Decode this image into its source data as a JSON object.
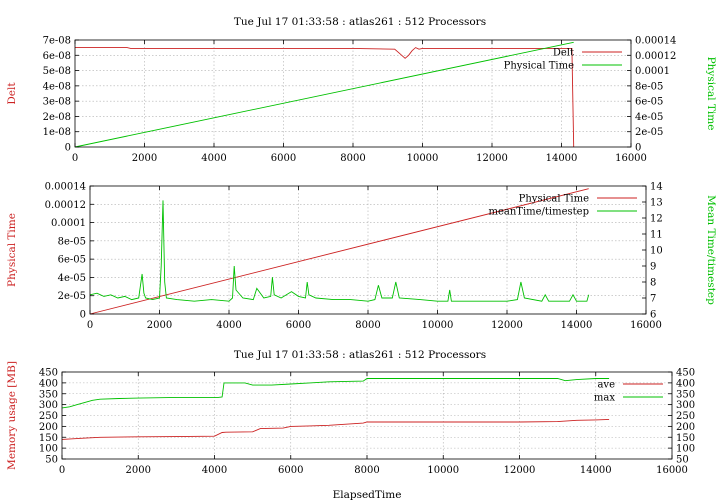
{
  "chart_data": [
    {
      "type": "line",
      "title": "Tue Jul 17 01:33:58 : atlas261 : 512 Processors",
      "xlabel": "",
      "ylabel": "Delt",
      "y2label": "Physical Time",
      "xlim": [
        0,
        16000
      ],
      "ylim": [
        0,
        7e-08
      ],
      "y2lim": [
        0,
        0.00014
      ],
      "xticks": [
        "0",
        "2000",
        "4000",
        "6000",
        "8000",
        "10000",
        "12000",
        "14000",
        "16000"
      ],
      "yticks": [
        "0",
        "1e-08",
        "2e-08",
        "3e-08",
        "4e-08",
        "5e-08",
        "6e-08",
        "7e-08"
      ],
      "y2ticks": [
        "0",
        "2e-05",
        "4e-05",
        "6e-05",
        "8e-05",
        "0.0001",
        "0.00012",
        "0.00014"
      ],
      "legend_position": "top-right",
      "grid": true,
      "series": [
        {
          "name": "Delt",
          "axis": "y",
          "color": "#cc2222",
          "x": [
            0,
            1500,
            1600,
            4000,
            8000,
            9200,
            9300,
            9400,
            9500,
            9600,
            9700,
            9800,
            9900,
            10000,
            12000,
            14000,
            14200,
            14300,
            14350
          ],
          "y": [
            6.5e-08,
            6.5e-08,
            6.45e-08,
            6.45e-08,
            6.45e-08,
            6.4e-08,
            6.2e-08,
            6e-08,
            5.8e-08,
            6e-08,
            6.3e-08,
            6.5e-08,
            6.4e-08,
            6.45e-08,
            6.45e-08,
            6.45e-08,
            6.45e-08,
            6.45e-08,
            0
          ]
        },
        {
          "name": "Physical Time",
          "axis": "y2",
          "color": "#00c000",
          "x": [
            0,
            14350
          ],
          "y": [
            0,
            0.000137
          ]
        }
      ]
    },
    {
      "type": "line",
      "title": "",
      "xlabel": "",
      "ylabel": "Physical Time",
      "y2label": "Mean Time/timestep",
      "xlim": [
        0,
        16000
      ],
      "ylim": [
        0,
        0.00014
      ],
      "y2lim": [
        6,
        14
      ],
      "xticks": [
        "0",
        "2000",
        "4000",
        "6000",
        "8000",
        "10000",
        "12000",
        "14000",
        "16000"
      ],
      "yticks": [
        "0",
        "2e-05",
        "4e-05",
        "6e-05",
        "8e-05",
        "0.0001",
        "0.00012",
        "0.00014"
      ],
      "y2ticks": [
        "6",
        "7",
        "8",
        "9",
        "10",
        "11",
        "12",
        "13",
        "14"
      ],
      "legend_position": "top-right",
      "grid": true,
      "series": [
        {
          "name": "Physical Time",
          "axis": "y",
          "color": "#cc2222",
          "x": [
            0,
            14350
          ],
          "y": [
            0,
            0.000137
          ]
        },
        {
          "name": "meanTime/timestep",
          "axis": "y2",
          "color": "#00c000",
          "x": [
            0,
            200,
            400,
            600,
            800,
            1000,
            1200,
            1400,
            1500,
            1550,
            1600,
            1800,
            2000,
            2050,
            2100,
            2150,
            2200,
            2500,
            3000,
            3500,
            4000,
            4100,
            4150,
            4200,
            4400,
            4700,
            4800,
            5000,
            5200,
            5250,
            5300,
            5500,
            5800,
            6000,
            6200,
            6250,
            6300,
            6500,
            7000,
            7500,
            8000,
            8200,
            8300,
            8400,
            8700,
            8800,
            8900,
            9500,
            10000,
            10300,
            10350,
            10400,
            11000,
            11500,
            12000,
            12300,
            12400,
            12500,
            13000,
            13100,
            13200,
            13500,
            13800,
            13900,
            14000,
            14200,
            14300,
            14350
          ],
          "y": [
            7.2,
            7.3,
            7.1,
            7.2,
            7.0,
            7.1,
            6.9,
            7.0,
            8.5,
            7.3,
            7.0,
            6.9,
            7.0,
            9.0,
            13.1,
            8.0,
            7.0,
            6.9,
            6.8,
            6.9,
            6.8,
            7.0,
            9.0,
            7.5,
            7.0,
            6.9,
            7.6,
            7.0,
            7.1,
            8.3,
            7.2,
            7.0,
            7.4,
            7.1,
            7.0,
            8.0,
            7.2,
            7.0,
            6.9,
            6.9,
            6.8,
            6.9,
            7.8,
            7.0,
            7.0,
            8.0,
            7.0,
            6.9,
            6.8,
            6.8,
            7.5,
            6.8,
            6.8,
            6.8,
            6.8,
            6.9,
            8.0,
            7.0,
            6.8,
            7.2,
            6.8,
            6.8,
            6.8,
            7.2,
            6.8,
            6.8,
            6.8,
            7.2
          ]
        }
      ]
    },
    {
      "type": "line",
      "title": "Tue Jul 17 01:33:58 : atlas261 : 512 Processors",
      "xlabel": "ElapsedTime",
      "ylabel": "Memory usage [MB]",
      "y2label": "",
      "xlim": [
        0,
        16000
      ],
      "ylim": [
        50,
        450
      ],
      "y2lim": [
        50,
        450
      ],
      "xticks": [
        "0",
        "2000",
        "4000",
        "6000",
        "8000",
        "10000",
        "12000",
        "14000",
        "16000"
      ],
      "yticks": [
        "50",
        "100",
        "150",
        "200",
        "250",
        "300",
        "350",
        "400",
        "450"
      ],
      "y2ticks": [
        "50",
        "100",
        "150",
        "200",
        "250",
        "300",
        "350",
        "400",
        "450"
      ],
      "legend_position": "top-right",
      "grid": true,
      "series": [
        {
          "name": "ave",
          "axis": "y",
          "color": "#cc2222",
          "x": [
            0,
            500,
            1000,
            2000,
            3000,
            4000,
            4200,
            4300,
            5000,
            5200,
            5800,
            6000,
            6500,
            7000,
            7900,
            8000,
            10000,
            12000,
            13000,
            13500,
            14000,
            14350
          ],
          "y": [
            140,
            145,
            150,
            152,
            153,
            155,
            172,
            173,
            175,
            190,
            192,
            200,
            202,
            205,
            215,
            220,
            220,
            220,
            222,
            228,
            230,
            232
          ]
        },
        {
          "name": "max",
          "axis": "y",
          "color": "#00c000",
          "x": [
            0,
            200,
            400,
            600,
            800,
            1000,
            1500,
            2000,
            3000,
            4100,
            4200,
            4250,
            4800,
            5000,
            5500,
            6000,
            6500,
            7000,
            7900,
            8000,
            10000,
            12000,
            13000,
            13200,
            13500,
            14000,
            14350
          ],
          "y": [
            285,
            290,
            300,
            310,
            320,
            325,
            328,
            330,
            333,
            333,
            335,
            400,
            400,
            390,
            390,
            395,
            400,
            405,
            408,
            420,
            420,
            420,
            420,
            410,
            415,
            420,
            420
          ]
        }
      ]
    }
  ]
}
